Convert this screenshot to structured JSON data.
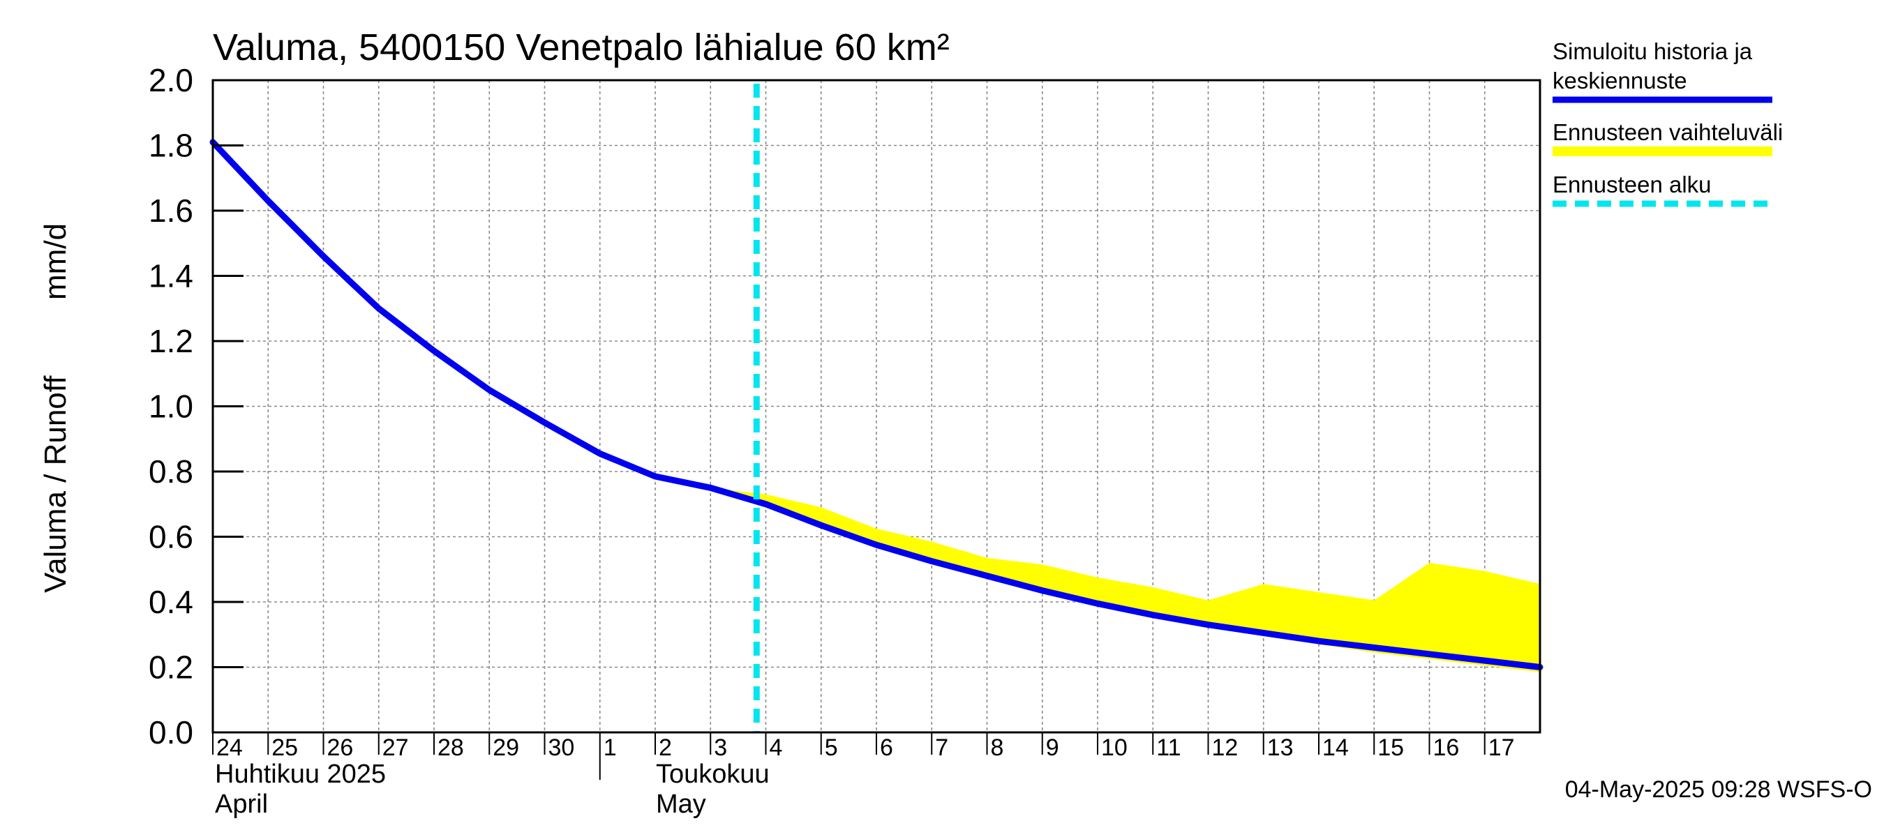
{
  "chart_data": {
    "type": "line",
    "title": "Valuma, 5400150 Venetpalo lähialue 60 km²",
    "ylabel_left": "Valuma / Runoff",
    "ylabel_right": "mm/d",
    "ylim": [
      0,
      2.0
    ],
    "yticks": [
      "0.0",
      "0.2",
      "0.4",
      "0.6",
      "0.8",
      "1.0",
      "1.2",
      "1.4",
      "1.6",
      "1.8",
      "2.0"
    ],
    "x_start": "2025-04-24",
    "x_end": "2025-05-18",
    "x_tick_labels": [
      "24",
      "25",
      "26",
      "27",
      "28",
      "29",
      "30",
      "1",
      "2",
      "3",
      "4",
      "5",
      "6",
      "7",
      "8",
      "9",
      "10",
      "11",
      "12",
      "13",
      "14",
      "15",
      "16",
      "17"
    ],
    "month_labels": [
      {
        "line1": "Huhtikuu  2025",
        "line2": "April"
      },
      {
        "line1": "Toukokuu",
        "line2": "May"
      }
    ],
    "grid": true,
    "legend_position": "right",
    "legend": [
      {
        "label_line1": "Simuloitu historia ja",
        "label_line2": "keskiennuste",
        "color": "#0000ee",
        "style": "solid"
      },
      {
        "label_line1": "Ennusteen vaihteluväli",
        "label_line2": "",
        "color": "#ffff00",
        "style": "band"
      },
      {
        "label_line1": "Ennusteen alku",
        "label_line2": "",
        "color": "#00e5ee",
        "style": "dashed"
      }
    ],
    "forecast_start": "2025-05-03T20:00",
    "series": [
      {
        "name": "Simuloitu historia ja keskiennuste",
        "color": "#0000ee",
        "x": [
          "2025-04-24",
          "2025-04-25",
          "2025-04-26",
          "2025-04-27",
          "2025-04-28",
          "2025-04-29",
          "2025-04-30",
          "2025-05-01",
          "2025-05-02",
          "2025-05-03",
          "2025-05-04",
          "2025-05-05",
          "2025-05-06",
          "2025-05-07",
          "2025-05-08",
          "2025-05-09",
          "2025-05-10",
          "2025-05-11",
          "2025-05-12",
          "2025-05-13",
          "2025-05-14",
          "2025-05-15",
          "2025-05-16",
          "2025-05-17",
          "2025-05-18"
        ],
        "values": [
          1.81,
          1.63,
          1.46,
          1.3,
          1.17,
          1.05,
          0.95,
          0.855,
          0.785,
          0.75,
          0.7,
          0.635,
          0.575,
          0.525,
          0.48,
          0.435,
          0.395,
          0.36,
          0.33,
          0.305,
          0.28,
          0.26,
          0.24,
          0.22,
          0.2
        ]
      }
    ],
    "band": {
      "name": "Ennusteen vaihteluväli",
      "color": "#ffff00",
      "x": [
        "2025-05-03",
        "2025-05-04",
        "2025-05-05",
        "2025-05-06",
        "2025-05-07",
        "2025-05-08",
        "2025-05-09",
        "2025-05-10",
        "2025-05-11",
        "2025-05-12",
        "2025-05-13",
        "2025-05-14",
        "2025-05-15",
        "2025-05-16",
        "2025-05-17",
        "2025-05-18"
      ],
      "upper": [
        0.75,
        0.73,
        0.69,
        0.625,
        0.585,
        0.535,
        0.515,
        0.475,
        0.445,
        0.405,
        0.455,
        0.43,
        0.405,
        0.52,
        0.495,
        0.455
      ],
      "lower": [
        0.75,
        0.7,
        0.63,
        0.57,
        0.52,
        0.475,
        0.43,
        0.39,
        0.355,
        0.325,
        0.295,
        0.27,
        0.245,
        0.225,
        0.205,
        0.185
      ]
    },
    "timestamp": "04-May-2025 09:28 WSFS-O"
  }
}
